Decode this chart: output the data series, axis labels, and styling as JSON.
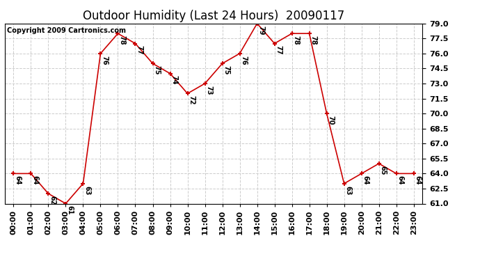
{
  "title": "Outdoor Humidity (Last 24 Hours)  20090117",
  "copyright": "Copyright 2009 Cartronics.com",
  "x_labels": [
    "00:00",
    "01:00",
    "02:00",
    "03:00",
    "04:00",
    "05:00",
    "06:00",
    "07:00",
    "08:00",
    "09:00",
    "10:00",
    "11:00",
    "12:00",
    "13:00",
    "14:00",
    "15:00",
    "16:00",
    "17:00",
    "18:00",
    "19:00",
    "20:00",
    "21:00",
    "22:00",
    "23:00"
  ],
  "y_values": [
    64,
    64,
    62,
    61,
    63,
    76,
    78,
    77,
    75,
    74,
    72,
    73,
    75,
    76,
    79,
    77,
    78,
    78,
    70,
    63,
    64,
    65,
    64,
    64
  ],
  "ylim_min": 61.0,
  "ylim_max": 79.0,
  "y_ticks": [
    61.0,
    62.5,
    64.0,
    65.5,
    67.0,
    68.5,
    70.0,
    71.5,
    73.0,
    74.5,
    76.0,
    77.5,
    79.0
  ],
  "line_color": "#cc0000",
  "marker_color": "#cc0000",
  "bg_color": "#ffffff",
  "grid_color": "#cccccc",
  "title_fontsize": 12,
  "annotation_fontsize": 7,
  "tick_fontsize": 8,
  "copyright_fontsize": 7
}
